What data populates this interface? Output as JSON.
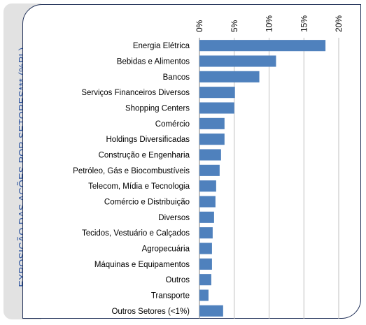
{
  "side_title": "EXPOSIÇÃO DAS AÇÕES POR SETORES*** (%PL)",
  "chart_data": {
    "type": "bar",
    "orientation": "horizontal",
    "categories": [
      "Energia Elétrica",
      "Bebidas e Alimentos",
      "Bancos",
      "Serviços Financeiros Diversos",
      "Shopping Centers",
      "Comércio",
      "Holdings Diversificadas",
      "Construção e Engenharia",
      "Petróleo, Gás e Biocombustíveis",
      "Telecom, Mídia e Tecnologia",
      "Comércio e Distribuição",
      "Diversos",
      "Tecidos, Vestuário e Calçados",
      "Agropecuária",
      "Máquinas e Equipamentos",
      "Outros",
      "Transporte",
      "Outros Setores (<1%)"
    ],
    "values": [
      18.1,
      11.0,
      8.6,
      5.1,
      5.0,
      3.6,
      3.6,
      3.1,
      2.9,
      2.4,
      2.3,
      2.1,
      1.9,
      1.8,
      1.8,
      1.7,
      1.3,
      3.4
    ],
    "xticks": [
      "0%",
      "5%",
      "10%",
      "15%",
      "20%"
    ],
    "xtick_values": [
      0,
      5,
      10,
      15,
      20
    ],
    "xlim": [
      0,
      20
    ],
    "axis_position": "top",
    "grid": true,
    "bar_color": "#4f81bd",
    "title": "",
    "xlabel": "",
    "ylabel": ""
  }
}
